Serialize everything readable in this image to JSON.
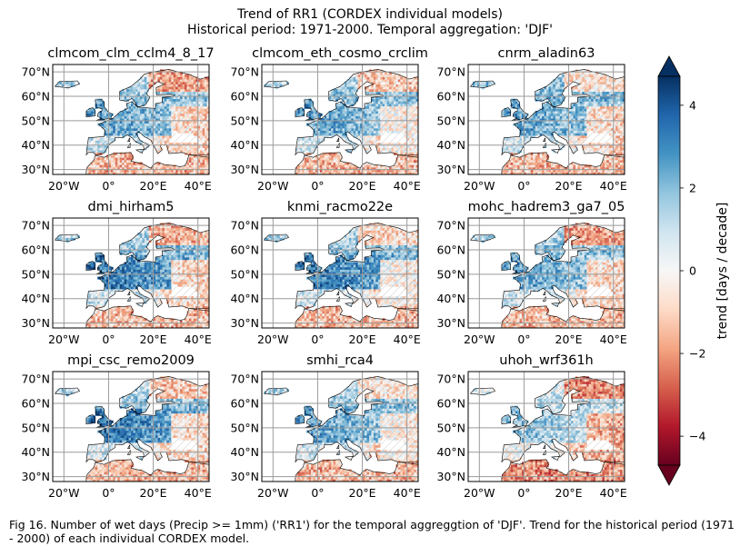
{
  "figure": {
    "title_line1": "Trend of RR1 (CORDEX individual models)",
    "title_line2": "Historical period: 1971-2000. Temporal aggregation: 'DJF'",
    "caption": "Fig 16. Number of wet days (Precip >= 1mm) ('RR1') for the temporal aggreggtion of 'DJF'. Trend for the historical period (1971 - 2000) of each individual CORDEX model."
  },
  "chart_data": {
    "type": "heatmap",
    "variable": "RR1",
    "period": "1971-2000",
    "aggregation": "DJF",
    "x_ticks": [
      "20°W",
      "0°",
      "20°E",
      "40°E"
    ],
    "y_ticks": [
      "70°N",
      "60°N",
      "50°N",
      "40°N",
      "30°N"
    ],
    "x_tick_values": [
      -20,
      0,
      20,
      40
    ],
    "y_tick_values": [
      70,
      60,
      50,
      40,
      30
    ],
    "lon_range": [
      -25,
      45
    ],
    "lat_range": [
      28,
      73
    ],
    "grid": true,
    "hatching": "non-significant trends hatched",
    "panels": [
      {
        "title": "clmcom_clm_cclm4_8_17"
      },
      {
        "title": "clmcom_eth_cosmo_crclim"
      },
      {
        "title": "cnrm_aladin63"
      },
      {
        "title": "dmi_hirham5"
      },
      {
        "title": "knmi_racmo22e"
      },
      {
        "title": "mohc_hadrem3_ga7_05"
      },
      {
        "title": "mpi_csc_remo2009"
      },
      {
        "title": "smhi_rca4"
      },
      {
        "title": "uhoh_wrf361h"
      }
    ],
    "colorbar": {
      "label": "trend [days / decade]",
      "ticks": [
        "4",
        "2",
        "0",
        "−2",
        "−4"
      ],
      "tick_values": [
        4,
        2,
        0,
        -2,
        -4
      ],
      "range": [
        -4.7,
        4.7
      ],
      "colormap": "RdBu",
      "extend": "both",
      "color_stops": [
        "#67001f",
        "#b2182b",
        "#d6604d",
        "#f4a582",
        "#fddbc7",
        "#f7f7f7",
        "#d1e5f0",
        "#92c5de",
        "#4393c3",
        "#2166ac",
        "#053061"
      ]
    }
  }
}
